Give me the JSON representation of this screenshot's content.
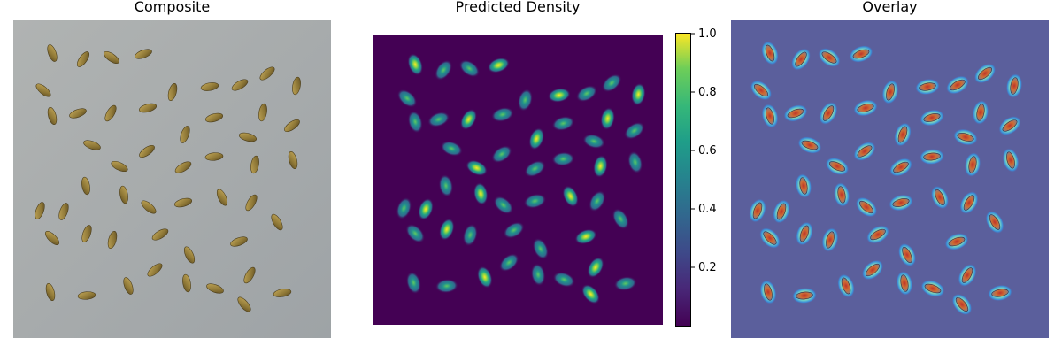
{
  "panels": {
    "composite": {
      "title": "Composite"
    },
    "density": {
      "title": "Predicted Density"
    },
    "overlay": {
      "title": "Overlay"
    }
  },
  "colorbar": {
    "ticks": [
      "1.0",
      "0.8",
      "0.6",
      "0.4",
      "0.2"
    ],
    "colormap": "viridis"
  },
  "colors": {
    "background_gray": "#a8acac",
    "seed_fill": "#9d8740",
    "density_bg": "#440154",
    "overlay_bg": "#5a5f9e"
  }
}
